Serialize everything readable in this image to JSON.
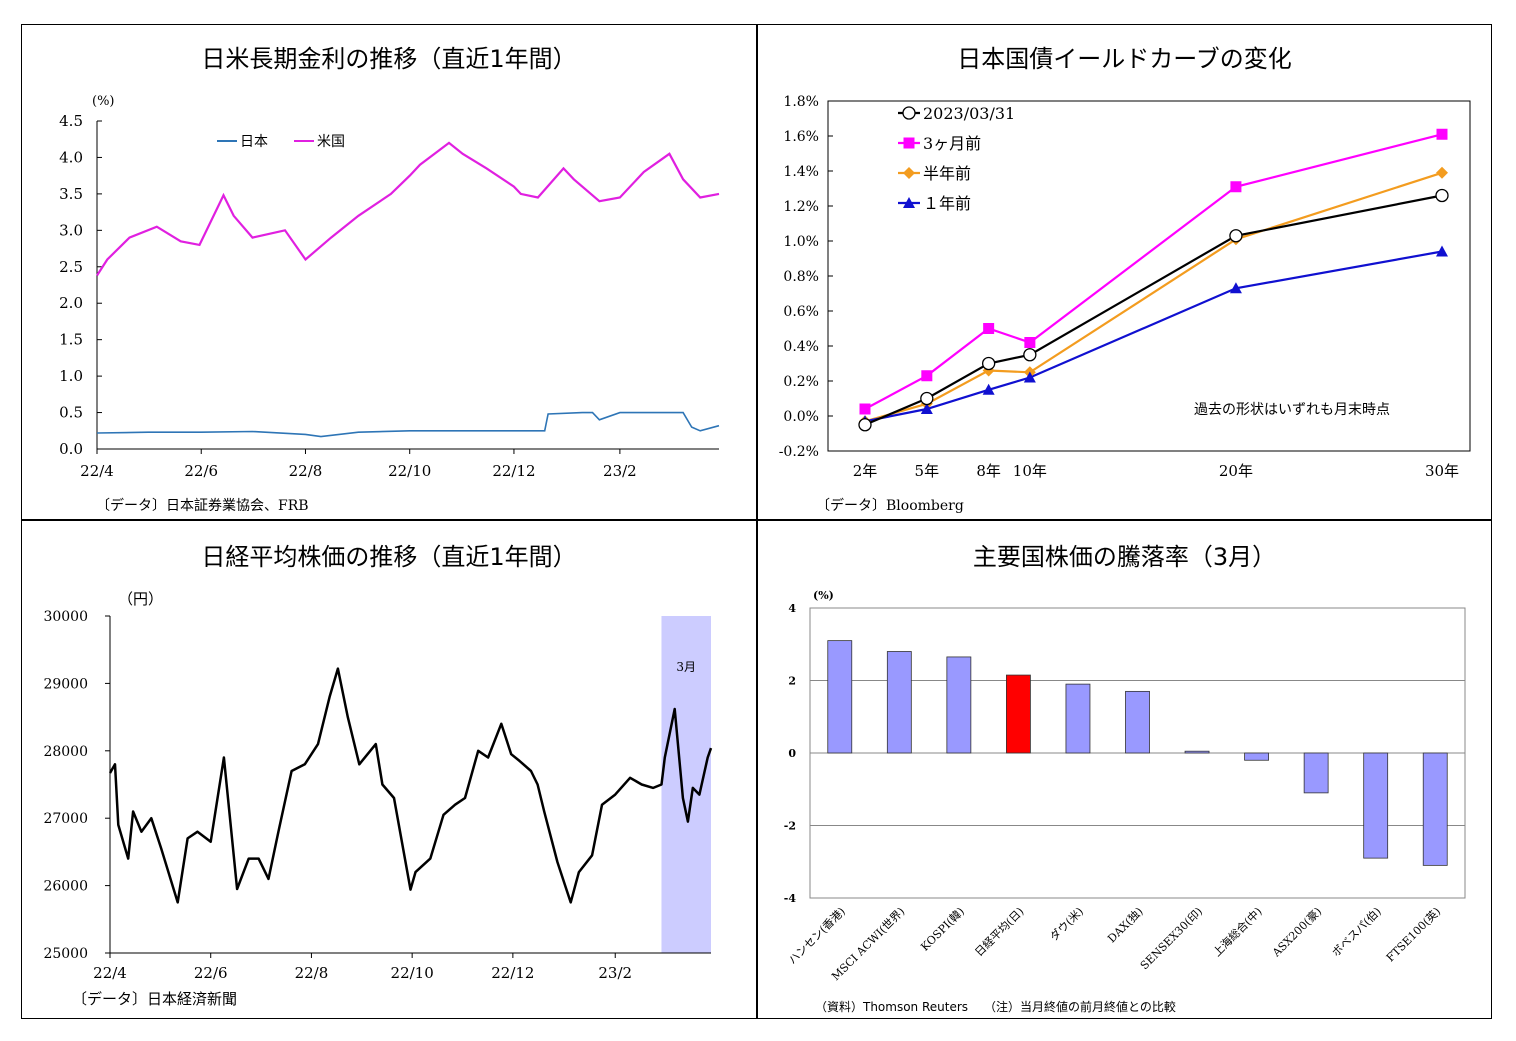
{
  "chart_data": [
    {
      "type": "line",
      "title": "日米長期金利の推移（直近1年間）",
      "unit_label": "(%)",
      "x_ticks": [
        "22/4",
        "22/6",
        "22/8",
        "22/10",
        "22/12",
        "23/2"
      ],
      "ylim": [
        0,
        4.5
      ],
      "y_ticks": [
        "0.0",
        "0.5",
        "1.0",
        "1.5",
        "2.0",
        "2.5",
        "3.0",
        "3.5",
        "4.0",
        "4.5"
      ],
      "legend_placement": "top-left",
      "series": [
        {
          "name": "日本",
          "color": "#2e75b6",
          "dates": [
            "2022-04-01",
            "2022-05-01",
            "2022-06-01",
            "2022-07-01",
            "2022-08-01",
            "2022-08-10",
            "2022-09-01",
            "2022-10-01",
            "2022-11-01",
            "2022-12-01",
            "2022-12-19",
            "2022-12-21",
            "2023-01-10",
            "2023-01-16",
            "2023-01-20",
            "2023-02-01",
            "2023-03-01",
            "2023-03-10",
            "2023-03-15",
            "2023-03-20",
            "2023-03-31"
          ],
          "values": [
            0.22,
            0.23,
            0.23,
            0.24,
            0.2,
            0.17,
            0.23,
            0.25,
            0.25,
            0.25,
            0.25,
            0.48,
            0.5,
            0.5,
            0.4,
            0.5,
            0.5,
            0.5,
            0.3,
            0.25,
            0.32
          ]
        },
        {
          "name": "米国",
          "color": "#e020e0",
          "dates": [
            "2022-04-01",
            "2022-04-07",
            "2022-04-20",
            "2022-05-06",
            "2022-05-20",
            "2022-05-31",
            "2022-06-14",
            "2022-06-20",
            "2022-07-01",
            "2022-07-20",
            "2022-08-01",
            "2022-08-16",
            "2022-09-01",
            "2022-09-20",
            "2022-10-01",
            "2022-10-07",
            "2022-10-24",
            "2022-11-01",
            "2022-11-15",
            "2022-12-01",
            "2022-12-05",
            "2022-12-15",
            "2022-12-30",
            "2023-01-05",
            "2023-01-20",
            "2023-02-01",
            "2023-02-15",
            "2023-03-02",
            "2023-03-10",
            "2023-03-20",
            "2023-03-31"
          ],
          "values": [
            2.38,
            2.6,
            2.9,
            3.05,
            2.85,
            2.8,
            3.48,
            3.2,
            2.9,
            3.0,
            2.6,
            2.9,
            3.2,
            3.5,
            3.75,
            3.9,
            4.2,
            4.05,
            3.85,
            3.6,
            3.5,
            3.45,
            3.85,
            3.7,
            3.4,
            3.45,
            3.8,
            4.05,
            3.7,
            3.45,
            3.5
          ]
        }
      ],
      "source": "〔データ〕日本証券業協会、FRB"
    },
    {
      "type": "line",
      "title": "日本国債イールドカーブの変化",
      "categories": [
        "2年",
        "5年",
        "8年",
        "10年",
        "20年",
        "30年"
      ],
      "x_positions": [
        2,
        5,
        8,
        10,
        20,
        30
      ],
      "ylim": [
        -0.2,
        1.8
      ],
      "y_ticks": [
        "-0.2%",
        "0.0%",
        "0.2%",
        "0.4%",
        "0.6%",
        "0.8%",
        "1.0%",
        "1.2%",
        "1.4%",
        "1.6%",
        "1.8%"
      ],
      "legend_placement": "top-left",
      "series": [
        {
          "name": "2023/03/31",
          "color": "#000000",
          "marker": "circle",
          "values": [
            -0.05,
            0.1,
            0.3,
            0.35,
            1.03,
            1.26
          ]
        },
        {
          "name": "3ヶ月前",
          "color": "#ff00ff",
          "marker": "square",
          "values": [
            0.04,
            0.23,
            0.5,
            0.42,
            1.31,
            1.61
          ]
        },
        {
          "name": "半年前",
          "color": "#f39c1f",
          "marker": "diamond",
          "values": [
            -0.03,
            0.07,
            0.26,
            0.25,
            1.01,
            1.39
          ]
        },
        {
          "name": "１年前",
          "color": "#1010d0",
          "marker": "triangle",
          "values": [
            -0.03,
            0.04,
            0.15,
            0.22,
            0.73,
            0.94
          ]
        }
      ],
      "annotation": "過去の形状はいずれも月末時点",
      "source": "〔データ〕Bloomberg"
    },
    {
      "type": "line",
      "title": "日経平均株価の推移（直近1年間）",
      "unit_label": "（円）",
      "x_ticks": [
        "22/4",
        "22/6",
        "22/8",
        "22/10",
        "22/12",
        "23/2"
      ],
      "ylim": [
        25000,
        30000
      ],
      "y_ticks": [
        "25000",
        "26000",
        "27000",
        "28000",
        "29000",
        "30000"
      ],
      "highlight": {
        "label": "3月",
        "from": "2023-03-01",
        "to": "2023-03-31",
        "color": "#ccccff"
      },
      "series": [
        {
          "name": "",
          "color": "#000000",
          "dates": [
            "2022-04-01",
            "2022-04-04",
            "2022-04-06",
            "2022-04-12",
            "2022-04-15",
            "2022-04-20",
            "2022-04-26",
            "2022-05-02",
            "2022-05-12",
            "2022-05-18",
            "2022-05-24",
            "2022-06-01",
            "2022-06-09",
            "2022-06-17",
            "2022-06-24",
            "2022-06-30",
            "2022-07-06",
            "2022-07-12",
            "2022-07-20",
            "2022-07-28",
            "2022-08-05",
            "2022-08-12",
            "2022-08-17",
            "2022-08-23",
            "2022-08-30",
            "2022-09-09",
            "2022-09-13",
            "2022-09-20",
            "2022-09-30",
            "2022-10-03",
            "2022-10-12",
            "2022-10-20",
            "2022-10-27",
            "2022-11-02",
            "2022-11-10",
            "2022-11-16",
            "2022-11-24",
            "2022-11-30",
            "2022-12-05",
            "2022-12-12",
            "2022-12-16",
            "2022-12-20",
            "2022-12-28",
            "2023-01-05",
            "2023-01-10",
            "2023-01-18",
            "2023-01-24",
            "2023-02-01",
            "2023-02-10",
            "2023-02-17",
            "2023-02-24",
            "2023-03-01",
            "2023-03-03",
            "2023-03-09",
            "2023-03-14",
            "2023-03-17",
            "2023-03-20",
            "2023-03-24",
            "2023-03-29",
            "2023-03-31"
          ],
          "values": [
            27670,
            27800,
            26900,
            26400,
            27100,
            26800,
            27000,
            26550,
            25750,
            26700,
            26800,
            26650,
            27900,
            25950,
            26400,
            26400,
            26100,
            26800,
            27700,
            27800,
            28100,
            28800,
            29220,
            28500,
            27800,
            28100,
            27500,
            27300,
            25940,
            26200,
            26400,
            27050,
            27200,
            27300,
            28000,
            27900,
            28400,
            27950,
            27850,
            27700,
            27500,
            27100,
            26350,
            25750,
            26200,
            26450,
            27200,
            27350,
            27600,
            27500,
            27450,
            27500,
            27900,
            28620,
            27300,
            26950,
            27450,
            27350,
            27900,
            28040
          ]
        }
      ],
      "source": "〔データ〕日本経済新聞"
    },
    {
      "type": "bar",
      "title": "主要国株価の騰落率（3月）",
      "unit_label": "(%)",
      "categories": [
        "ハンセン(香港)",
        "MSCI ACWI(世界)",
        "KOSPI(韓)",
        "日経平均(日)",
        "ダウ(米)",
        "DAX(独)",
        "SENSEX30(印)",
        "上海総合(中)",
        "ASX200(豪)",
        "ボベスパ(伯)",
        "FTSE100(英)"
      ],
      "values": [
        3.1,
        2.8,
        2.65,
        2.15,
        1.9,
        1.7,
        0.05,
        -0.2,
        -1.1,
        -2.9,
        -3.1
      ],
      "colors": [
        "#9999ff",
        "#9999ff",
        "#9999ff",
        "#ff0000",
        "#9999ff",
        "#9999ff",
        "#9999ff",
        "#9999ff",
        "#9999ff",
        "#9999ff",
        "#9999ff"
      ],
      "ylim": [
        -4,
        4
      ],
      "y_ticks": [
        "4",
        "2",
        "0",
        "-2",
        "-4"
      ],
      "grid": true,
      "source": "（資料）Thomson Reuters",
      "note": "（注）当月終値の前月終値との比較"
    }
  ]
}
